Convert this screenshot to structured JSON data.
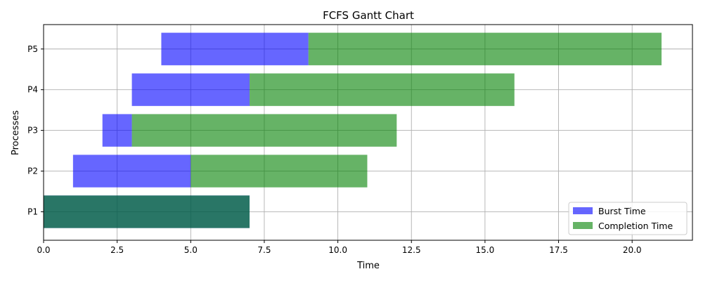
{
  "chart_data": {
    "type": "bar",
    "orientation": "horizontal",
    "title": "FCFS Gantt Chart",
    "xlabel": "Time",
    "ylabel": "Processes",
    "xlim": [
      0,
      22.05
    ],
    "xticks": [
      0,
      2.5,
      5,
      7.5,
      10,
      12.5,
      15,
      17.5,
      20
    ],
    "xtick_labels": [
      "0.0",
      "2.5",
      "5.0",
      "7.5",
      "10.0",
      "12.5",
      "15.0",
      "17.5",
      "20.0"
    ],
    "categories": [
      "P1",
      "P2",
      "P3",
      "P4",
      "P5"
    ],
    "grid": true,
    "legend_position": "bottom-right",
    "series": [
      {
        "name": "Burst Time",
        "color": "#0000ff",
        "alpha": 0.6,
        "starts": [
          0,
          1,
          2,
          3,
          4
        ],
        "values": [
          7,
          4,
          1,
          4,
          5
        ]
      },
      {
        "name": "Completion Time",
        "color": "#008000",
        "alpha": 0.6,
        "starts": [
          0,
          5,
          3,
          7,
          9
        ],
        "values": [
          7,
          6,
          9,
          9,
          12
        ]
      }
    ]
  }
}
